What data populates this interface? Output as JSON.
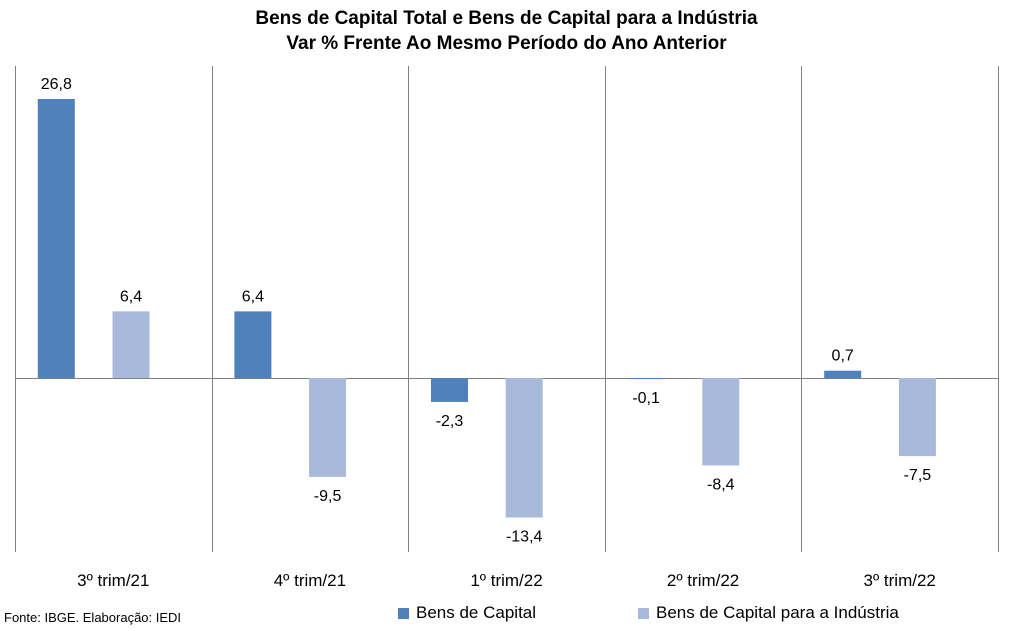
{
  "chart_data": {
    "type": "bar",
    "title": "Bens de Capital Total e Bens de Capital para a Indústria",
    "subtitle": "Var % Frente Ao Mesmo Período do Ano Anterior",
    "categories": [
      "3º trim/21",
      "4º trim/21",
      "1º trim/22",
      "2º trim/22",
      "3º trim/22"
    ],
    "series": [
      {
        "name": "Bens de Capital",
        "color": "#4f81bd",
        "values": [
          26.8,
          6.4,
          -2.3,
          -0.1,
          0.7
        ],
        "labels": [
          "26,8",
          "6,4",
          "-2,3",
          "-0,1",
          "0,7"
        ]
      },
      {
        "name": "Bens de Capital para a Indústria",
        "color": "#a9b9d9",
        "values": [
          6.4,
          -9.5,
          -13.4,
          -8.4,
          -7.5
        ],
        "labels": [
          "6,4",
          "-9,5",
          "-13,4",
          "-8,4",
          "-7,5"
        ]
      }
    ],
    "legend_position": "bottom",
    "grid": false
  },
  "source": "Fonte: IBGE. Elaboração: IEDI"
}
